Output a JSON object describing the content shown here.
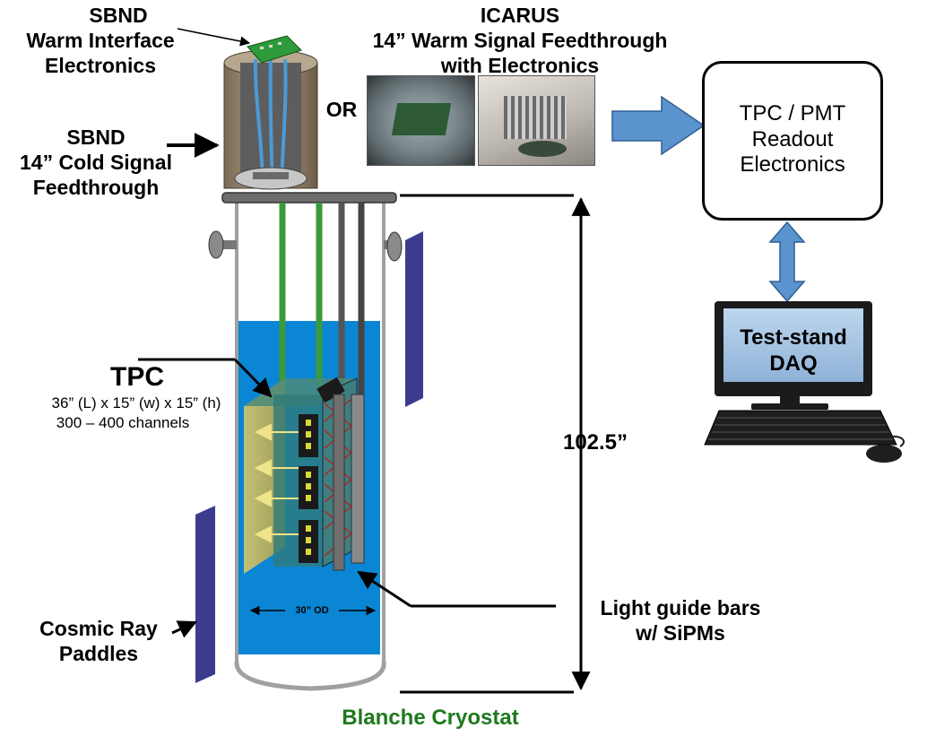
{
  "labels": {
    "sbnd_warm_1": "SBND",
    "sbnd_warm_2": "Warm Interface",
    "sbnd_warm_3": "Electronics",
    "sbnd_cold_1": "SBND",
    "sbnd_cold_2": "14” Cold Signal",
    "sbnd_cold_3": "Feedthrough",
    "or": "OR",
    "icarus_1": "ICARUS",
    "icarus_2": "14” Warm Signal Feedthrough",
    "icarus_3": "with Electronics",
    "readout_1": "TPC / PMT",
    "readout_2": "Readout",
    "readout_3": "Electronics",
    "daq_1": "Test-stand",
    "daq_2": "DAQ",
    "tpc_title": "TPC",
    "tpc_dims": "36” (L) x 15” (w) x 15” (h)",
    "tpc_channels": "300 – 400 channels",
    "height": "102.5”",
    "od": "30” OD",
    "light_1": "Light guide bars",
    "light_2": "w/ SiPMs",
    "cosmic_1": "Cosmic Ray",
    "cosmic_2": "Paddles",
    "cryostat": "Blanche Cryostat"
  },
  "colors": {
    "lar_blue": "#0a86d4",
    "cryostat_green": "#1e7a1e",
    "arrow_blue": "#5b93cf",
    "paddle_purple": "#3c3c8e",
    "tpc_frame": "#2f7a7a",
    "field_yellow": "#c9b84a"
  },
  "icons": [
    "feedthrough-render-icon",
    "icarus-photo-icon",
    "monitor-icon",
    "keyboard-icon",
    "mouse-icon"
  ]
}
